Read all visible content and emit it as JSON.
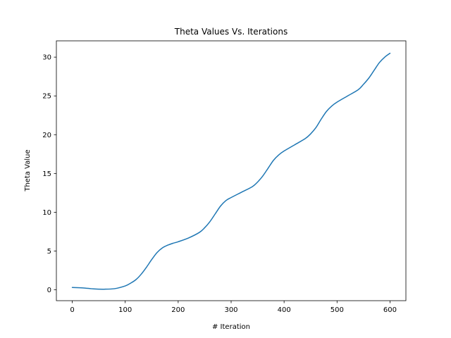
{
  "chart_data": {
    "type": "line",
    "title": "Theta Values Vs. Iterations",
    "xlabel": "# Iteration",
    "ylabel": "Theta Value",
    "xlim": [
      -30,
      630
    ],
    "ylim": [
      -1.4,
      32.1
    ],
    "xticks": [
      0,
      100,
      200,
      300,
      400,
      500,
      600
    ],
    "yticks": [
      0,
      5,
      10,
      15,
      20,
      25,
      30
    ],
    "grid": false,
    "series": [
      {
        "color": "#1f77b4",
        "x": [
          0,
          20,
          40,
          60,
          80,
          100,
          110,
          120,
          130,
          140,
          150,
          160,
          170,
          180,
          190,
          200,
          220,
          240,
          250,
          260,
          270,
          280,
          290,
          300,
          320,
          340,
          350,
          360,
          370,
          380,
          390,
          400,
          420,
          440,
          450,
          460,
          470,
          480,
          490,
          500,
          520,
          540,
          550,
          560,
          570,
          580,
          590,
          600
        ],
        "y": [
          0.3,
          0.25,
          0.12,
          0.08,
          0.15,
          0.5,
          0.85,
          1.3,
          2.0,
          2.9,
          3.9,
          4.8,
          5.4,
          5.75,
          6.0,
          6.2,
          6.7,
          7.4,
          8.0,
          8.8,
          9.8,
          10.8,
          11.5,
          11.9,
          12.6,
          13.3,
          13.9,
          14.7,
          15.7,
          16.7,
          17.4,
          17.9,
          18.7,
          19.5,
          20.1,
          20.9,
          22.0,
          23.0,
          23.7,
          24.2,
          25.0,
          25.8,
          26.5,
          27.3,
          28.3,
          29.3,
          30.0,
          30.5
        ]
      }
    ]
  }
}
